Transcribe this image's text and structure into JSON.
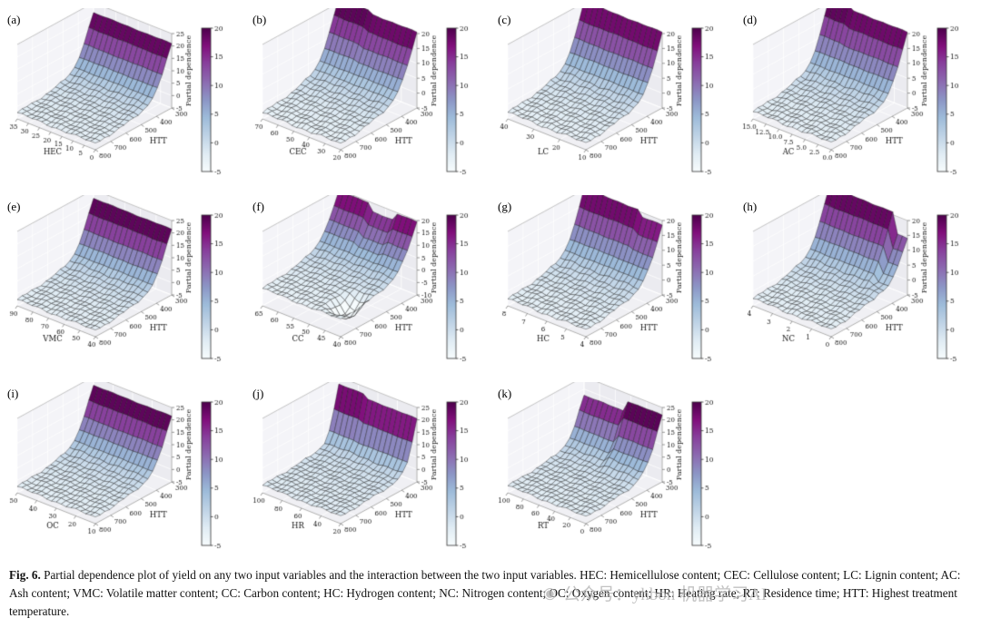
{
  "caption": {
    "label": "Fig. 6.",
    "text": " Partial dependence plot of yield on any two input variables and the interaction between the two input variables. HEC: Hemicellulose content; CEC: Cellulose content; LC: Lignin content; AC: Ash content; VMC: Volatile matter content; CC: Carbon content; HC: Hydrogen content; NC: Nitrogen content; OC: Oxygen content; HR: Heating rate; RT: Residence time; HTT: Highest treatment temperature."
  },
  "watermark": {
    "icon": "◉",
    "text": "公众号：yhbon 机器学习AI"
  },
  "style": {
    "colormap": [
      "#f7fcfd",
      "#e0ecf4",
      "#bfd3e6",
      "#9ebcda",
      "#8c96c6",
      "#8c6bb1",
      "#88419d",
      "#810f7c",
      "#4d004b"
    ],
    "colorbar_range": [
      -5,
      20
    ],
    "floor_color": "#f0f0f4",
    "wall_left_color": "#f4f4f8",
    "wall_right_color": "#ebebf0",
    "grid_color": "#ffffff",
    "edge_color": "#999999",
    "surface_edge_color": "#1a1a1a",
    "text_color": "#111111"
  },
  "chart_data": [
    {
      "type": "surface3d",
      "panel": "(a)",
      "xlabel": "HEC",
      "ylabel": "HTT",
      "zlabel": "Partial dependence",
      "x_ticks": [
        "35",
        "30",
        "25",
        "20",
        "15",
        "10",
        "5",
        "0"
      ],
      "htt_ticks": [
        "800",
        "700",
        "600",
        "500",
        "400",
        "300"
      ],
      "z_ticks": [
        -5,
        0,
        5,
        10,
        15,
        20,
        25
      ],
      "colorbar_ticks": [
        20,
        15,
        10,
        5,
        0,
        -5
      ],
      "profile": [
        -2.5,
        -2.4,
        -2.2,
        -2.1,
        -1.9,
        -1.7,
        -1.4,
        -1.1,
        -0.7,
        -0.2,
        0.5,
        1.5,
        3.2,
        6.2,
        10.5,
        16,
        21
      ],
      "mods": []
    },
    {
      "type": "surface3d",
      "panel": "(b)",
      "xlabel": "CEC",
      "ylabel": "HTT",
      "zlabel": "Partial dependence",
      "x_ticks": [
        "70",
        "60",
        "50",
        "40",
        "30",
        "20"
      ],
      "htt_ticks": [
        "800",
        "700",
        "600",
        "500",
        "400",
        "300"
      ],
      "z_ticks": [
        -5,
        0,
        5,
        10,
        15,
        20
      ],
      "colorbar_ticks": [
        20,
        15,
        10,
        5,
        0,
        -5
      ],
      "profile": [
        -3,
        -2.8,
        -2.6,
        -2.4,
        -2.1,
        -1.8,
        -1.5,
        -1.1,
        -0.6,
        0,
        0.8,
        2,
        4,
        7,
        11,
        15.5,
        20.5
      ],
      "mods": [
        {
          "type": "ridge",
          "u0": 0,
          "u1": 0.4,
          "delta": 1.5,
          "v0": 0.75
        }
      ]
    },
    {
      "type": "surface3d",
      "panel": "(c)",
      "xlabel": "LC",
      "ylabel": "HTT",
      "zlabel": "Partial dependence",
      "x_ticks": [
        "40",
        "30",
        "20",
        "10"
      ],
      "htt_ticks": [
        "800",
        "700",
        "600",
        "500",
        "400",
        "300"
      ],
      "z_ticks": [
        -5,
        0,
        5,
        10,
        15,
        20
      ],
      "colorbar_ticks": [
        20,
        15,
        10,
        5,
        0,
        -5
      ],
      "profile": [
        -2.8,
        -2.7,
        -2.5,
        -2.3,
        -2,
        -1.8,
        -1.5,
        -1.2,
        -0.8,
        -0.3,
        0.4,
        1.4,
        3,
        6,
        10,
        15,
        20.5
      ],
      "mods": []
    },
    {
      "type": "surface3d",
      "panel": "(d)",
      "xlabel": "AC",
      "ylabel": "HTT",
      "zlabel": "Partial dependence",
      "x_ticks": [
        "15.0",
        "12.5",
        "10.0",
        "7.5",
        "5.0",
        "2.5",
        "0.0"
      ],
      "htt_ticks": [
        "800",
        "700",
        "600",
        "500",
        "400",
        "300"
      ],
      "z_ticks": [
        -5,
        0,
        5,
        10,
        15,
        20
      ],
      "colorbar_ticks": [
        20,
        15,
        10,
        5,
        0,
        -5
      ],
      "profile": [
        -2.6,
        -2.5,
        -2.3,
        -2.1,
        -1.9,
        -1.6,
        -1.3,
        -1,
        -0.6,
        -0.1,
        0.6,
        1.6,
        3.4,
        6.5,
        10.5,
        15.5,
        20.5
      ],
      "mods": [
        {
          "type": "ridge",
          "u0": 0,
          "u1": 0.25,
          "delta": 1.2,
          "v0": 0.8
        }
      ]
    },
    {
      "type": "surface3d",
      "panel": "(e)",
      "xlabel": "VMC",
      "ylabel": "HTT",
      "zlabel": "Partial dependence",
      "x_ticks": [
        "90",
        "80",
        "70",
        "60",
        "50",
        "40"
      ],
      "htt_ticks": [
        "800",
        "700",
        "600",
        "500",
        "400",
        "300"
      ],
      "z_ticks": [
        -5,
        0,
        5,
        10,
        15,
        20,
        25
      ],
      "colorbar_ticks": [
        20,
        15,
        10,
        5,
        0,
        -5
      ],
      "profile": [
        -2.5,
        -2.4,
        -2.3,
        -2.1,
        -1.9,
        -1.7,
        -1.4,
        -1.1,
        -0.7,
        -0.2,
        0.5,
        1.6,
        3.3,
        6.5,
        11,
        16.5,
        21.5
      ],
      "mods": []
    },
    {
      "type": "surface3d",
      "panel": "(f)",
      "xlabel": "CC",
      "ylabel": "HTT",
      "zlabel": "Partial dependence",
      "x_ticks": [
        "65",
        "60",
        "55",
        "50",
        "45",
        "40"
      ],
      "htt_ticks": [
        "800",
        "700",
        "600",
        "500",
        "400",
        "300"
      ],
      "z_ticks": [
        -10,
        -5,
        0,
        5,
        10,
        15,
        20
      ],
      "colorbar_ticks": [
        20,
        15,
        10,
        5,
        0,
        -5
      ],
      "profile": [
        -3,
        -2.9,
        -2.7,
        -2.5,
        -2.2,
        -2,
        -1.6,
        -1.2,
        -0.8,
        -0.2,
        0.6,
        1.8,
        3.5,
        6.5,
        10,
        14.5,
        19.5
      ],
      "mods": [
        {
          "type": "dip",
          "u0": 0.72,
          "u1": 1,
          "v0": 0.05,
          "v1": 0.42,
          "delta": -6
        },
        {
          "type": "ridge",
          "u0": 0.38,
          "u1": 0.72,
          "delta": -3,
          "v0": 0.72
        }
      ]
    },
    {
      "type": "surface3d",
      "panel": "(g)",
      "xlabel": "HC",
      "ylabel": "HTT",
      "zlabel": "Partial dependence",
      "x_ticks": [
        "8",
        "7",
        "6",
        "5",
        "4"
      ],
      "htt_ticks": [
        "800",
        "700",
        "600",
        "500",
        "400",
        "300"
      ],
      "z_ticks": [
        -5,
        0,
        5,
        10,
        15,
        20
      ],
      "colorbar_ticks": [
        20,
        15,
        10,
        5,
        0,
        -5
      ],
      "profile": [
        -2.7,
        -2.6,
        -2.4,
        -2.2,
        -2,
        -1.7,
        -1.4,
        -1.1,
        -0.7,
        -0.2,
        0.5,
        1.5,
        3.2,
        6,
        10,
        15,
        20.5
      ],
      "mods": [
        {
          "type": "ridge",
          "u0": 0.75,
          "u1": 1,
          "delta": -2,
          "v0": 0.8
        }
      ]
    },
    {
      "type": "surface3d",
      "panel": "(h)",
      "xlabel": "NC",
      "ylabel": "HTT",
      "zlabel": "Partial dependence",
      "x_ticks": [
        "4",
        "3",
        "2",
        "1",
        "0"
      ],
      "htt_ticks": [
        "800",
        "700",
        "600",
        "500",
        "400",
        "300"
      ],
      "z_ticks": [
        -5,
        0,
        5,
        10,
        15,
        20
      ],
      "colorbar_ticks": [
        20,
        15,
        10,
        5,
        0,
        -5
      ],
      "profile": [
        -2.6,
        -2.5,
        -2.3,
        -2.1,
        -1.9,
        -1.6,
        -1.3,
        -0.9,
        -0.5,
        0,
        0.8,
        1.8,
        3.6,
        6.8,
        11,
        16,
        21
      ],
      "mods": [
        {
          "type": "ridge",
          "u0": 0.82,
          "u1": 1,
          "delta": -7,
          "v0": 0.65
        }
      ]
    },
    {
      "type": "surface3d",
      "panel": "(i)",
      "xlabel": "OC",
      "ylabel": "HTT",
      "zlabel": "Partial dependence",
      "x_ticks": [
        "50",
        "40",
        "30",
        "20",
        "10"
      ],
      "htt_ticks": [
        "800",
        "700",
        "600",
        "500",
        "400",
        "300"
      ],
      "z_ticks": [
        -5,
        0,
        5,
        10,
        15,
        20,
        25
      ],
      "colorbar_ticks": [
        20,
        15,
        10,
        5,
        0,
        -5
      ],
      "profile": [
        -2.5,
        -2.4,
        -2.2,
        -2,
        -1.8,
        -1.6,
        -1.3,
        -1,
        -0.6,
        -0.1,
        0.6,
        1.7,
        3.5,
        6.8,
        11,
        16.5,
        21.5
      ],
      "mods": []
    },
    {
      "type": "surface3d",
      "panel": "(j)",
      "xlabel": "HR",
      "ylabel": "HTT",
      "zlabel": "Partial dependence",
      "x_ticks": [
        "100",
        "80",
        "60",
        "40",
        "20"
      ],
      "htt_ticks": [
        "800",
        "700",
        "600",
        "500",
        "400",
        "300"
      ],
      "z_ticks": [
        -5,
        0,
        5,
        10,
        15,
        20,
        25
      ],
      "colorbar_ticks": [
        20,
        15,
        10,
        5,
        0,
        -5
      ],
      "profile": [
        -2,
        -2,
        -1.9,
        -1.8,
        -1.7,
        -1.6,
        -1.5,
        -1.3,
        -1.2,
        -1,
        -0.8,
        -0.4,
        0.3,
        1.6,
        5,
        12,
        20.5
      ],
      "mods": [
        {
          "type": "ridge",
          "u0": 0,
          "u1": 0.35,
          "delta": 1.5,
          "v0": 0.85
        }
      ]
    },
    {
      "type": "surface3d",
      "panel": "(k)",
      "xlabel": "RT",
      "ylabel": "HTT",
      "zlabel": "Partial dependence",
      "x_ticks": [
        "100",
        "80",
        "60",
        "40",
        "20",
        "0"
      ],
      "htt_ticks": [
        "800",
        "700",
        "600",
        "500",
        "400",
        "300"
      ],
      "z_ticks": [
        -5,
        0,
        5,
        10,
        15,
        20,
        25
      ],
      "colorbar_ticks": [
        20,
        15,
        10,
        5,
        0,
        -5
      ],
      "profile": [
        -2.2,
        -2.1,
        -2,
        -1.9,
        -1.8,
        -1.6,
        -1.4,
        -1.2,
        -1,
        -0.7,
        -0.3,
        0.4,
        1.5,
        3.5,
        7,
        12.5,
        17.5
      ],
      "mods": [
        {
          "type": "ridge",
          "u0": 0.55,
          "u1": 1,
          "delta": 4.5,
          "v0": 0.6
        }
      ]
    }
  ]
}
